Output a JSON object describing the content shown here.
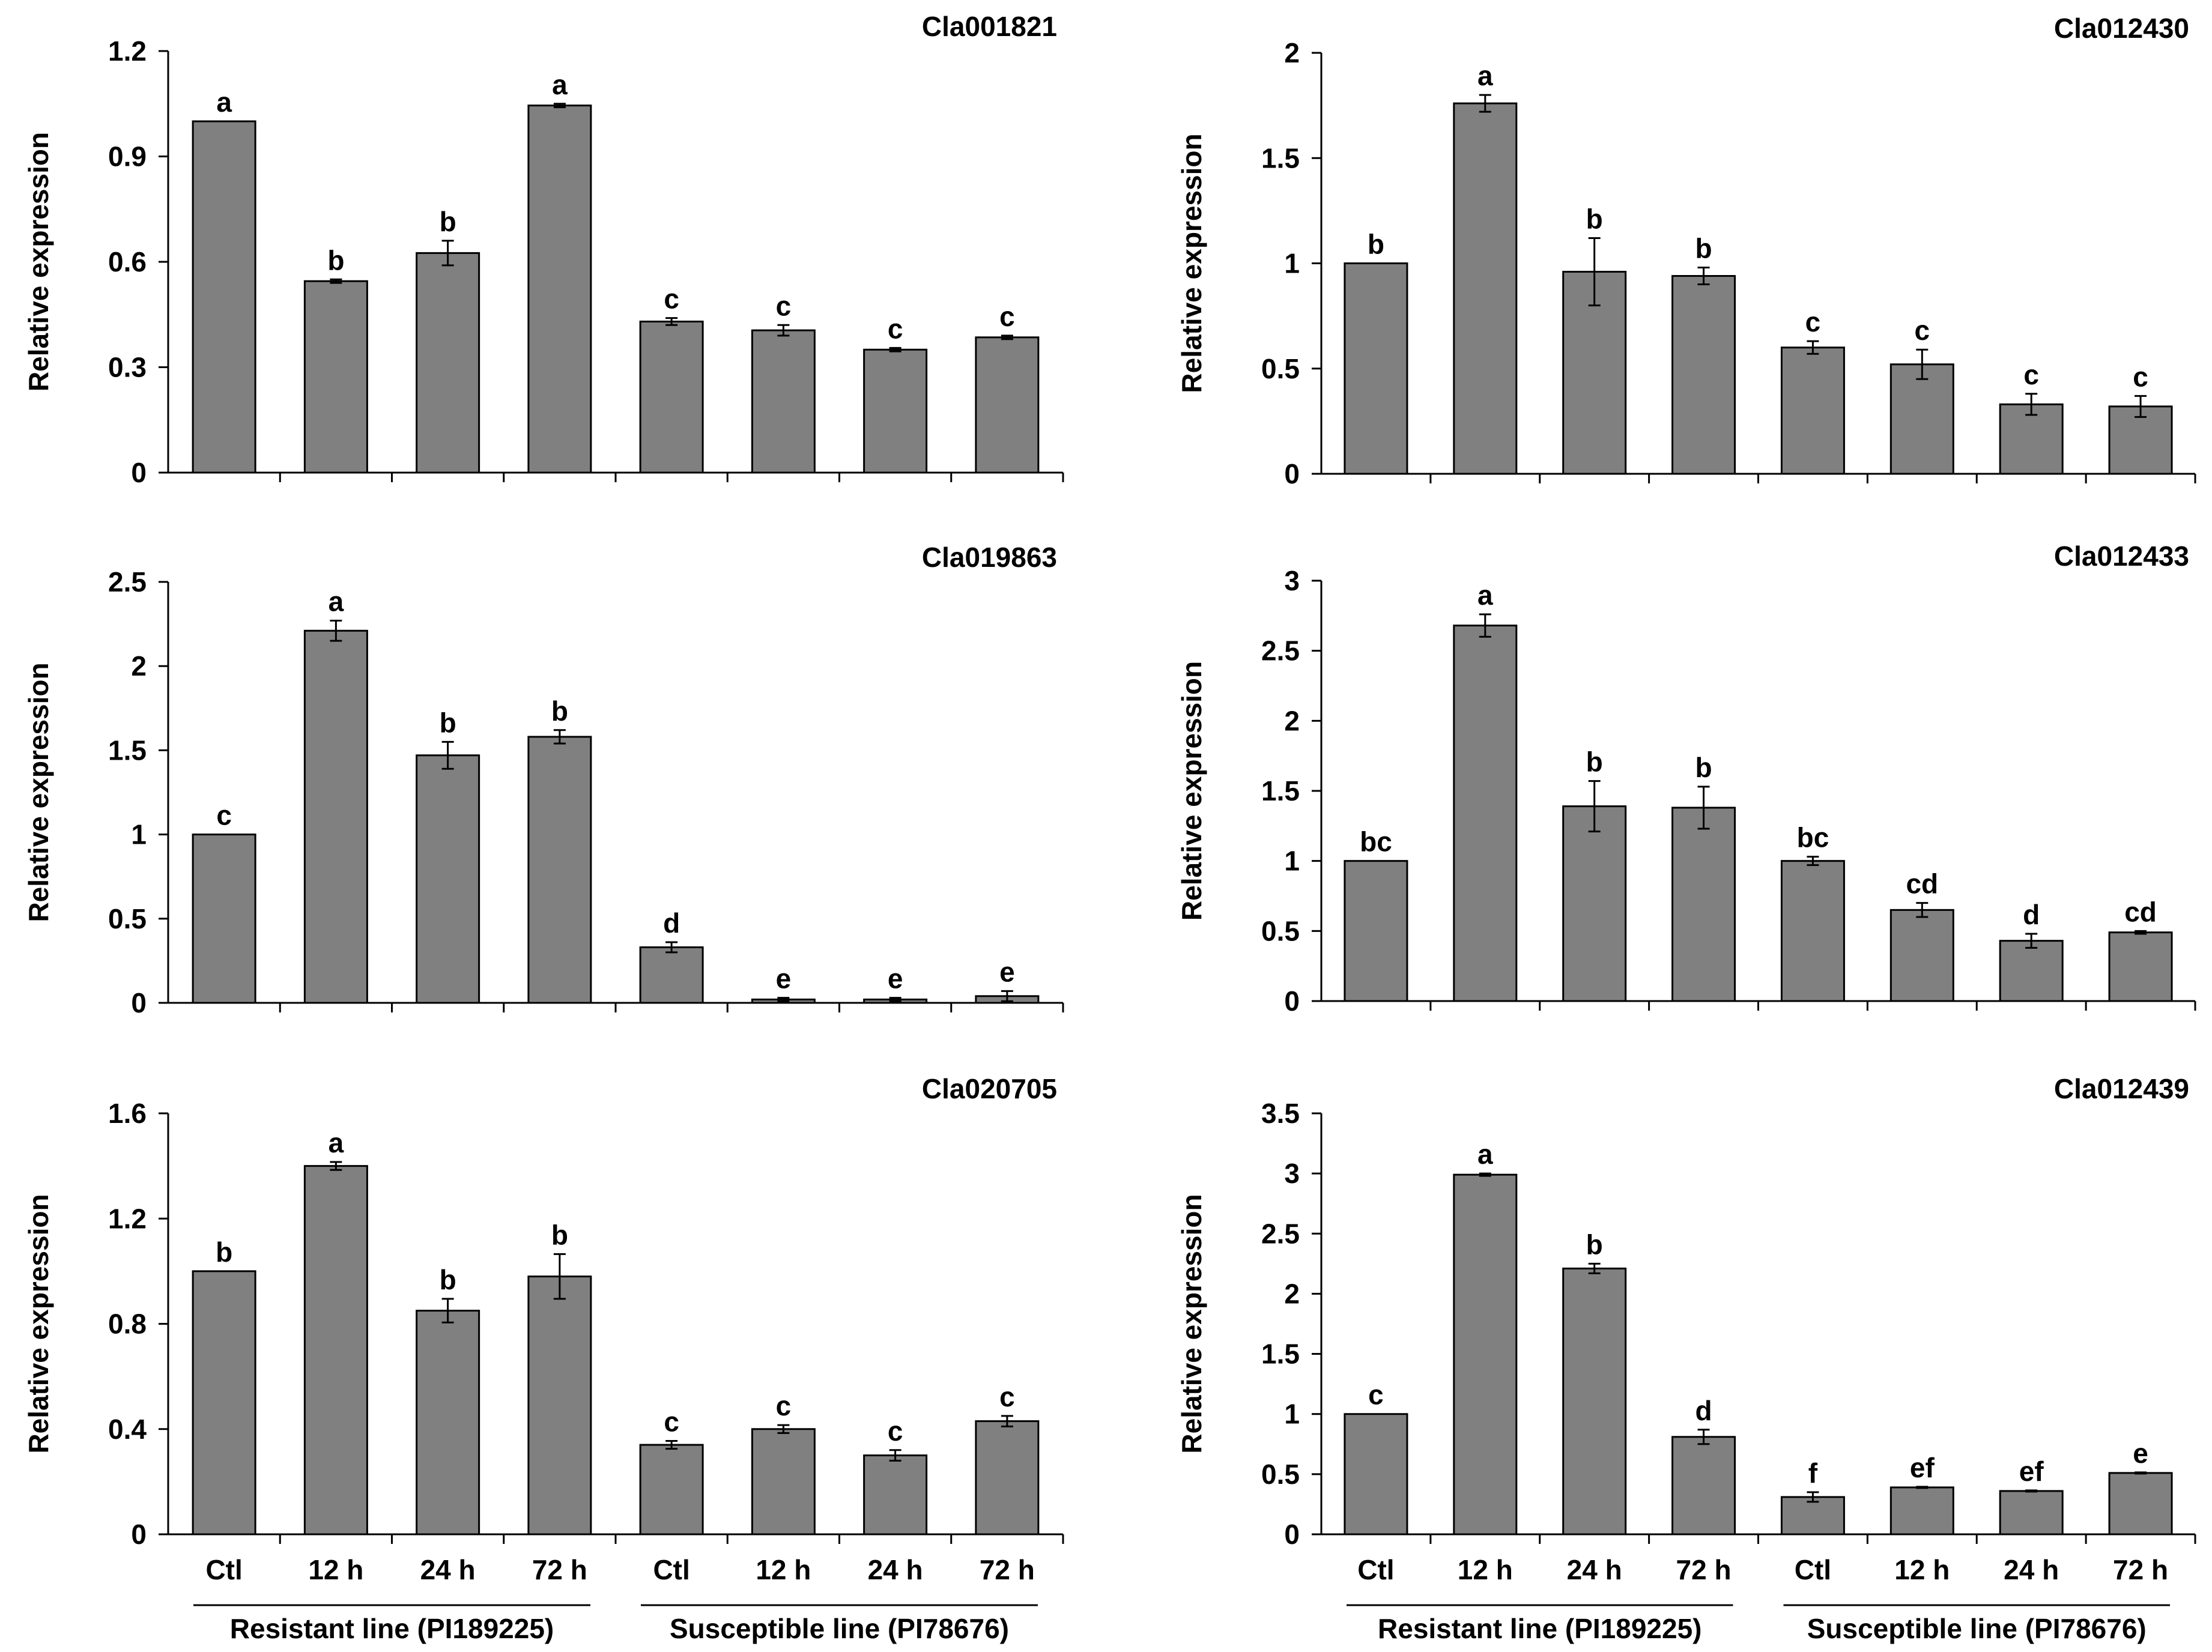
{
  "figure": {
    "ylabel": "Relative expression",
    "categories": [
      "Ctl",
      "12 h",
      "24 h",
      "72 h",
      "Ctl",
      "12 h",
      "24 h",
      "72 h"
    ],
    "groups": [
      {
        "label": "Resistant line (PI189225)"
      },
      {
        "label": "Susceptible line (PI78676)"
      }
    ],
    "bar_color": "#808080",
    "line_color": "#000000"
  },
  "chart_data": [
    {
      "type": "bar",
      "title": "Cla001821",
      "ylabel": "Relative expression",
      "ylim": [
        0,
        1.2
      ],
      "yticks": [
        0,
        0.3,
        0.6,
        0.9,
        1.2
      ],
      "ytick_labels": [
        "0",
        "0.3",
        "0.6",
        "0.9",
        "1.2"
      ],
      "categories": [
        "Ctl",
        "12 h",
        "24 h",
        "72 h",
        "Ctl",
        "12 h",
        "24 h",
        "72 h"
      ],
      "values": [
        1.0,
        0.545,
        0.625,
        1.045,
        0.43,
        0.405,
        0.35,
        0.385
      ],
      "errors": [
        0.0,
        0.005,
        0.035,
        0.005,
        0.01,
        0.015,
        0.005,
        0.005
      ],
      "letters": [
        "a",
        "b",
        "b",
        "a",
        "c",
        "c",
        "c",
        "c"
      ]
    },
    {
      "type": "bar",
      "title": "Cla012430",
      "ylabel": "Relative expression",
      "ylim": [
        0,
        2
      ],
      "yticks": [
        0,
        0.5,
        1,
        1.5,
        2
      ],
      "ytick_labels": [
        "0",
        "0.5",
        "1",
        "1.5",
        "2"
      ],
      "categories": [
        "Ctl",
        "12 h",
        "24 h",
        "72 h",
        "Ctl",
        "12 h",
        "24 h",
        "72 h"
      ],
      "values": [
        1.0,
        1.76,
        0.96,
        0.94,
        0.6,
        0.52,
        0.33,
        0.32
      ],
      "errors": [
        0.0,
        0.04,
        0.16,
        0.04,
        0.03,
        0.07,
        0.05,
        0.05
      ],
      "letters": [
        "b",
        "a",
        "b",
        "b",
        "c",
        "c",
        "c",
        "c"
      ]
    },
    {
      "type": "bar",
      "title": "Cla019863",
      "ylabel": "Relative expression",
      "ylim": [
        0,
        2.5
      ],
      "yticks": [
        0,
        0.5,
        1,
        1.5,
        2,
        2.5
      ],
      "ytick_labels": [
        "0",
        "0.5",
        "1",
        "1.5",
        "2",
        "2.5"
      ],
      "categories": [
        "Ctl",
        "12 h",
        "24 h",
        "72 h",
        "Ctl",
        "12 h",
        "24 h",
        "72 h"
      ],
      "values": [
        1.0,
        2.21,
        1.47,
        1.58,
        0.33,
        0.02,
        0.02,
        0.04
      ],
      "errors": [
        0.0,
        0.06,
        0.08,
        0.04,
        0.03,
        0.01,
        0.01,
        0.03
      ],
      "letters": [
        "c",
        "a",
        "b",
        "b",
        "d",
        "e",
        "e",
        "e"
      ]
    },
    {
      "type": "bar",
      "title": "Cla012433",
      "ylabel": "Relative expression",
      "ylim": [
        0,
        3
      ],
      "yticks": [
        0,
        0.5,
        1,
        1.5,
        2,
        2.5,
        3
      ],
      "ytick_labels": [
        "0",
        "0.5",
        "1",
        "1.5",
        "2",
        "2.5",
        "3"
      ],
      "categories": [
        "Ctl",
        "12 h",
        "24 h",
        "72 h",
        "Ctl",
        "12 h",
        "24 h",
        "72 h"
      ],
      "values": [
        1.0,
        2.68,
        1.39,
        1.38,
        1.0,
        0.65,
        0.43,
        0.49
      ],
      "errors": [
        0.0,
        0.08,
        0.18,
        0.15,
        0.03,
        0.05,
        0.05,
        0.01
      ],
      "letters": [
        "bc",
        "a",
        "b",
        "b",
        "bc",
        "cd",
        "d",
        "cd"
      ]
    },
    {
      "type": "bar",
      "title": "Cla020705",
      "ylabel": "Relative expression",
      "ylim": [
        0,
        1.6
      ],
      "yticks": [
        0,
        0.4,
        0.8,
        1.2,
        1.6
      ],
      "ytick_labels": [
        "0",
        "0.4",
        "0.8",
        "1.2",
        "1.6"
      ],
      "categories": [
        "Ctl",
        "12 h",
        "24 h",
        "72 h",
        "Ctl",
        "12 h",
        "24 h",
        "72 h"
      ],
      "values": [
        1.0,
        1.4,
        0.85,
        0.98,
        0.34,
        0.4,
        0.3,
        0.43
      ],
      "errors": [
        0.0,
        0.015,
        0.045,
        0.085,
        0.015,
        0.015,
        0.02,
        0.02
      ],
      "letters": [
        "b",
        "a",
        "b",
        "b",
        "c",
        "c",
        "c",
        "c"
      ]
    },
    {
      "type": "bar",
      "title": "Cla012439",
      "ylabel": "Relative expression",
      "ylim": [
        0,
        3.5
      ],
      "yticks": [
        0,
        0.5,
        1,
        1.5,
        2,
        2.5,
        3,
        3.5
      ],
      "ytick_labels": [
        "0",
        "0.5",
        "1",
        "1.5",
        "2",
        "2.5",
        "3",
        "3.5"
      ],
      "categories": [
        "Ctl",
        "12 h",
        "24 h",
        "72 h",
        "Ctl",
        "12 h",
        "24 h",
        "72 h"
      ],
      "values": [
        1.0,
        2.99,
        2.21,
        0.81,
        0.31,
        0.39,
        0.36,
        0.51
      ],
      "errors": [
        0.0,
        0.01,
        0.04,
        0.06,
        0.04,
        0.005,
        0.005,
        0.005
      ],
      "letters": [
        "c",
        "a",
        "b",
        "d",
        "f",
        "ef",
        "ef",
        "e"
      ]
    }
  ]
}
